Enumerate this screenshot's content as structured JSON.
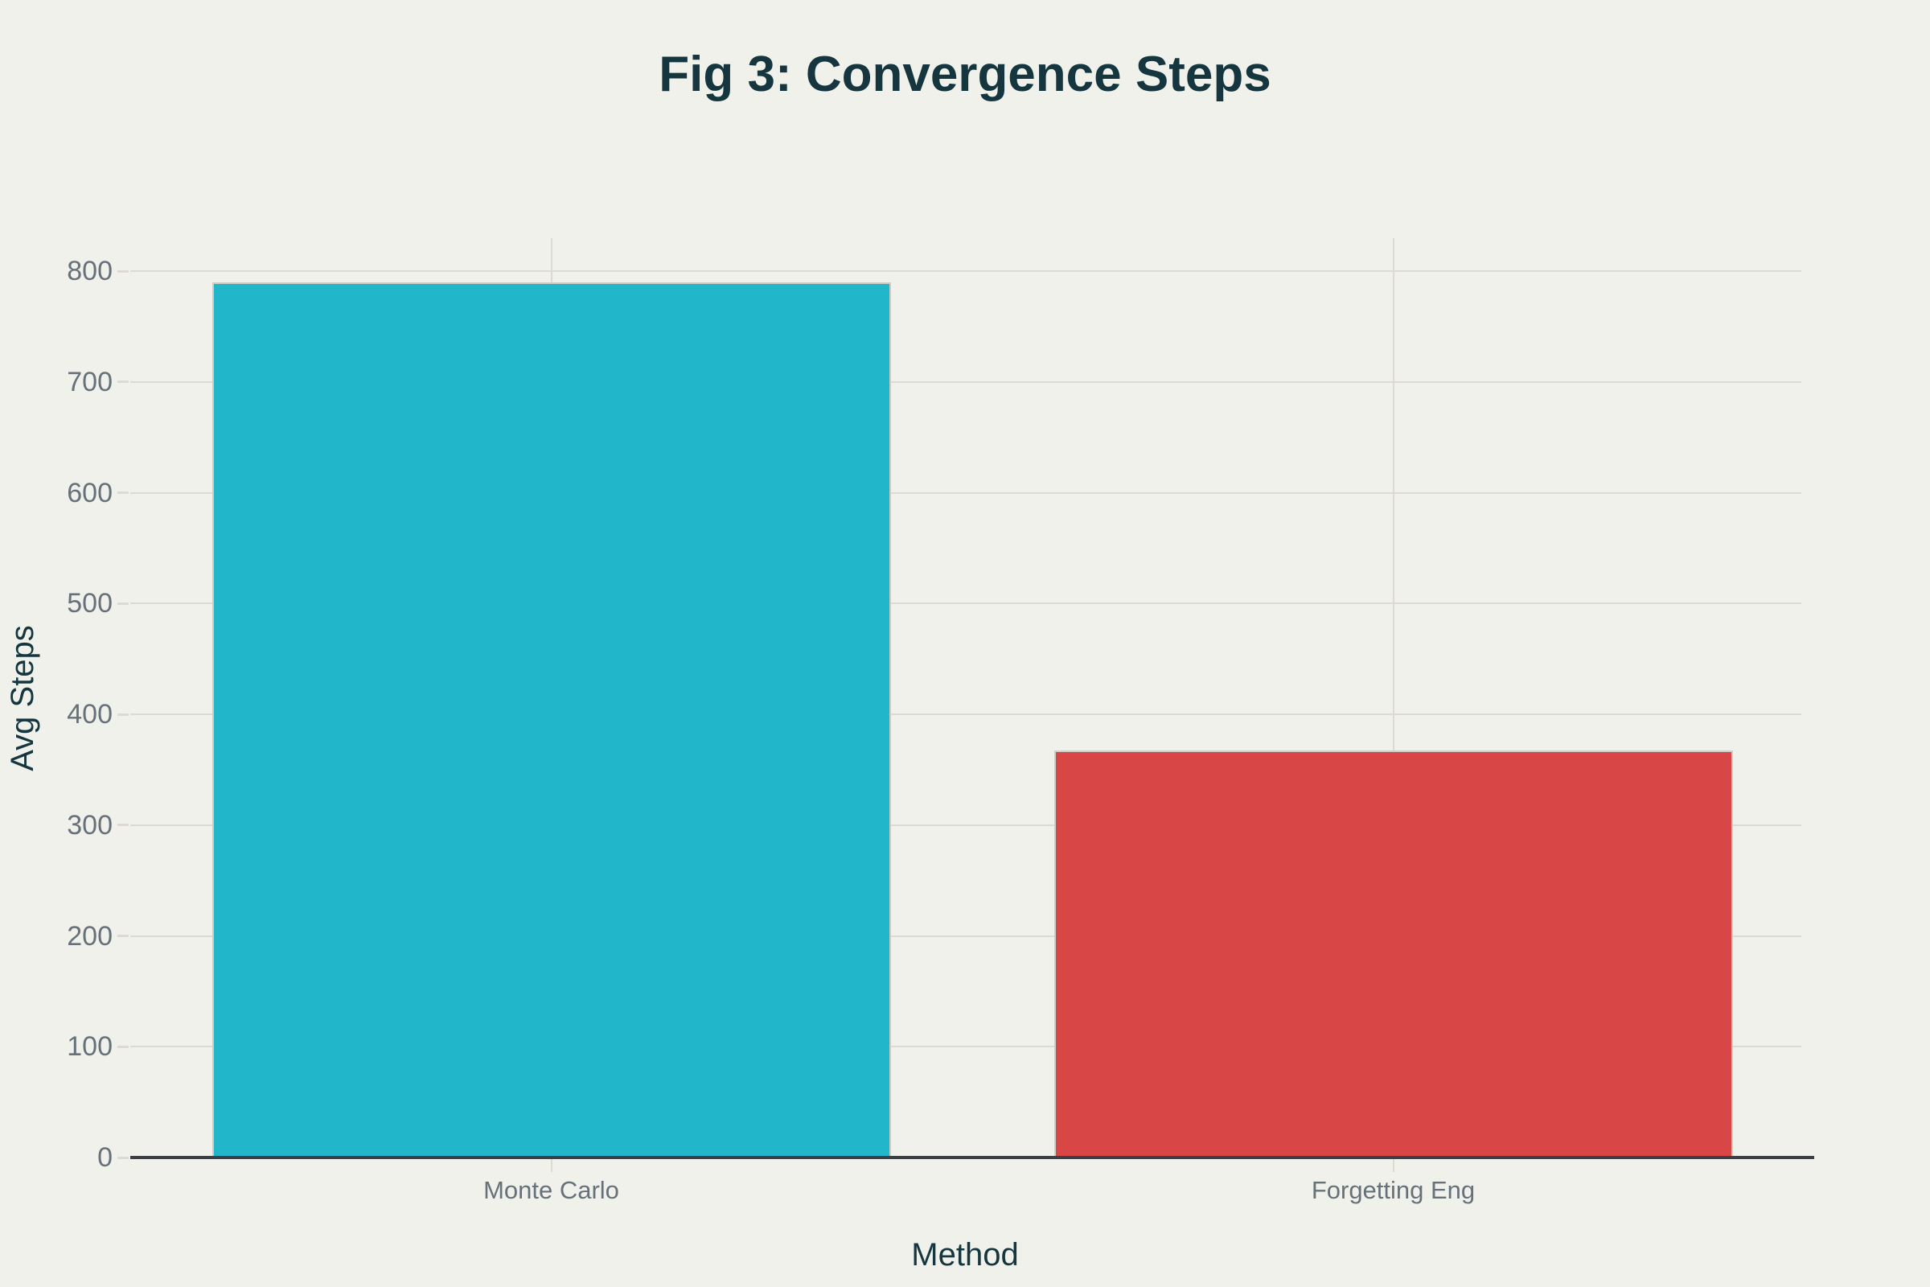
{
  "title": "Fig 3: Convergence Steps",
  "theme": {
    "background": "#f1f1ec",
    "title_color": "#15363e",
    "axis_title_color": "#15363e",
    "tick_label_color": "#67717a",
    "gridline_color": "#dcdad3",
    "axis_line_color": "#3a4045",
    "bar_border_color": "#cfcdc6",
    "bar_color_monte_carlo": "#21b6ca",
    "bar_color_forgetting_eng": "#d94646"
  },
  "chart_data": {
    "type": "bar",
    "title": "Fig 3: Convergence Steps",
    "xlabel": "Method",
    "ylabel": "Avg Steps",
    "categories": [
      "Monte Carlo",
      "Forgetting Eng"
    ],
    "series": [
      {
        "name": "Avg Steps",
        "values": [
          790,
          367
        ]
      }
    ],
    "values": [
      790,
      367
    ],
    "bar_colors": [
      "#21b6ca",
      "#d94646"
    ],
    "ylim": [
      0,
      800
    ],
    "yticks": [
      0,
      100,
      200,
      300,
      400,
      500,
      600,
      700,
      800
    ],
    "grid": true,
    "legend_position": "none"
  }
}
